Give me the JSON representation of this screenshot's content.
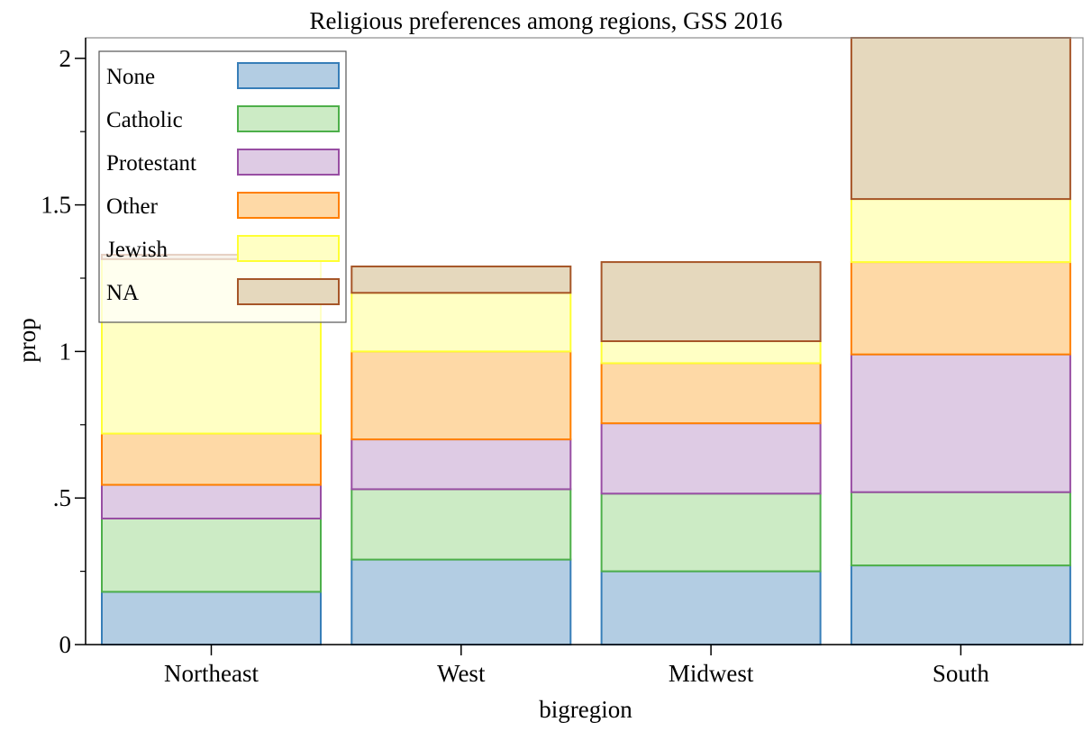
{
  "chart_data": {
    "type": "bar",
    "stacked": true,
    "title": "Religious preferences among regions, GSS 2016",
    "xlabel": "bigregion",
    "ylabel": "prop",
    "categories": [
      "Northeast",
      "West",
      "Midwest",
      "South"
    ],
    "ylim": [
      0,
      2.07
    ],
    "yticks": [
      {
        "value": 0,
        "label": "0"
      },
      {
        "value": 0.5,
        "label": ".5"
      },
      {
        "value": 1,
        "label": "1"
      },
      {
        "value": 1.5,
        "label": "1.5"
      },
      {
        "value": 2,
        "label": "2"
      }
    ],
    "yminor_ticks": [
      0.25,
      0.75,
      1.25,
      1.75
    ],
    "legend_position": "top-left",
    "series": [
      {
        "name": "None",
        "values": [
          0.18,
          0.29,
          0.25,
          0.27
        ],
        "fill": "#b3cde3",
        "stroke": "#377eb8"
      },
      {
        "name": "Catholic",
        "values": [
          0.25,
          0.24,
          0.265,
          0.25
        ],
        "fill": "#ccebc5",
        "stroke": "#4daf4a"
      },
      {
        "name": "Protestant",
        "values": [
          0.115,
          0.17,
          0.24,
          0.47
        ],
        "fill": "#decbe4",
        "stroke": "#984ea3"
      },
      {
        "name": "Other",
        "values": [
          0.175,
          0.3,
          0.205,
          0.315
        ],
        "fill": "#fed9a6",
        "stroke": "#ff7f00"
      },
      {
        "name": "Jewish",
        "values": [
          0.595,
          0.2,
          0.075,
          0.215
        ],
        "fill": "#ffffc4",
        "stroke": "#ffff33"
      },
      {
        "name": "NA",
        "values": [
          0.015,
          0.09,
          0.27,
          0.55
        ],
        "fill": "#e5d8bd",
        "stroke": "#a65628"
      }
    ]
  }
}
